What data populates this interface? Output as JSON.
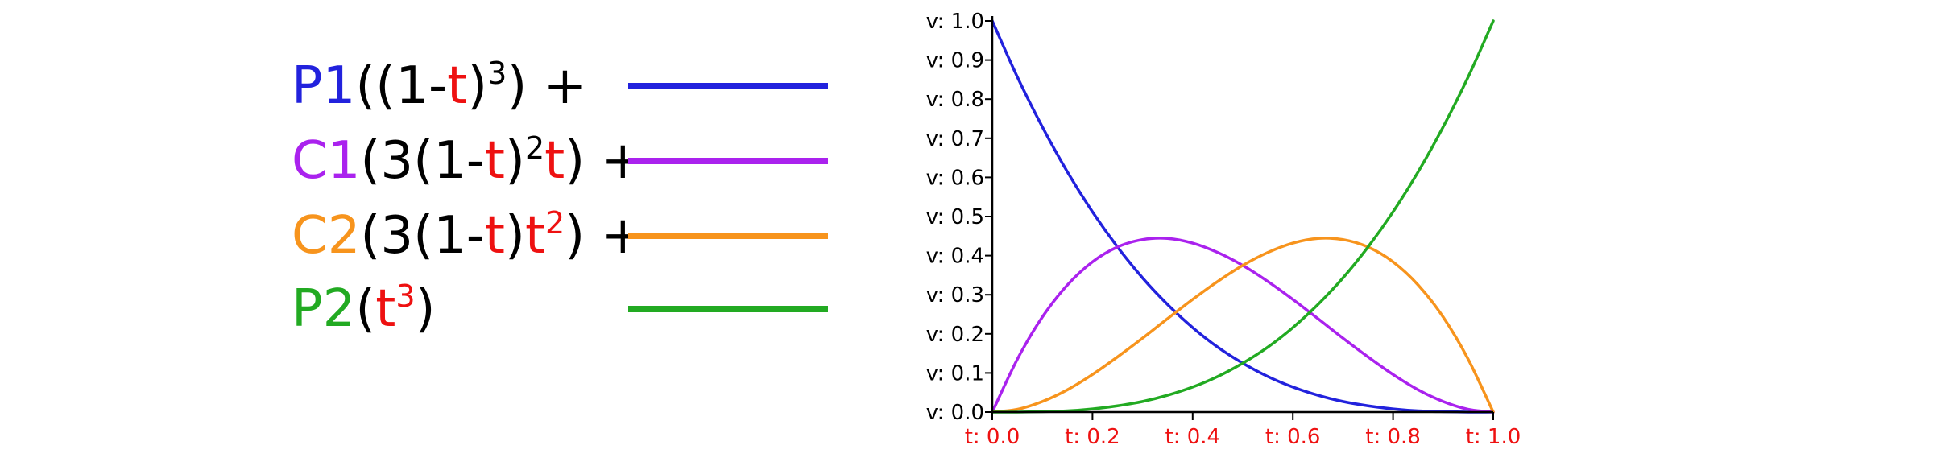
{
  "colors": {
    "p1": "#2222dd",
    "c1": "#aa22ee",
    "c2": "#f7941d",
    "p2": "#22aa22",
    "t": "#ee1111",
    "text": "#000000",
    "axis": "#000000"
  },
  "legend": [
    {
      "key": "p1",
      "color_key": "p1",
      "name": "P1",
      "parts": [
        {
          "text": "((1-"
        },
        {
          "text": "t",
          "t": true
        },
        {
          "text": ")"
        },
        {
          "text": "3",
          "sup": true
        },
        {
          "text": ") +"
        }
      ]
    },
    {
      "key": "c1",
      "color_key": "c1",
      "name": "C1",
      "parts": [
        {
          "text": "(3(1-"
        },
        {
          "text": "t",
          "t": true
        },
        {
          "text": ")"
        },
        {
          "text": "2",
          "sup": true
        },
        {
          "text": "t",
          "t": true
        },
        {
          "text": ") +"
        }
      ]
    },
    {
      "key": "c2",
      "color_key": "c2",
      "name": "C2",
      "parts": [
        {
          "text": "(3(1-"
        },
        {
          "text": "t",
          "t": true
        },
        {
          "text": ")"
        },
        {
          "text": "t",
          "t": true
        },
        {
          "text": "2",
          "sup": true,
          "t": true
        },
        {
          "text": ") +"
        }
      ]
    },
    {
      "key": "p2",
      "color_key": "p2",
      "name": "P2",
      "parts": [
        {
          "text": "("
        },
        {
          "text": "t",
          "t": true
        },
        {
          "text": "3",
          "sup": true,
          "t": true
        },
        {
          "text": ")"
        }
      ]
    }
  ],
  "chart_data": {
    "type": "line",
    "title": "",
    "xlabel": "",
    "ylabel": "",
    "xlim": [
      0,
      1
    ],
    "ylim": [
      0,
      1
    ],
    "grid": false,
    "legend_position": "left",
    "x_ticks": [
      {
        "value": 0.0,
        "label": "t: 0.0"
      },
      {
        "value": 0.2,
        "label": "t: 0.2"
      },
      {
        "value": 0.4,
        "label": "t: 0.4"
      },
      {
        "value": 0.6,
        "label": "t: 0.6"
      },
      {
        "value": 0.8,
        "label": "t: 0.8"
      },
      {
        "value": 1.0,
        "label": "t: 1.0"
      }
    ],
    "y_ticks": [
      {
        "value": 0.0,
        "label": "v: 0.0"
      },
      {
        "value": 0.1,
        "label": "v: 0.1"
      },
      {
        "value": 0.2,
        "label": "v: 0.2"
      },
      {
        "value": 0.3,
        "label": "v: 0.3"
      },
      {
        "value": 0.4,
        "label": "v: 0.4"
      },
      {
        "value": 0.5,
        "label": "v: 0.5"
      },
      {
        "value": 0.6,
        "label": "v: 0.6"
      },
      {
        "value": 0.7,
        "label": "v: 0.7"
      },
      {
        "value": 0.8,
        "label": "v: 0.8"
      },
      {
        "value": 0.9,
        "label": "v: 0.9"
      },
      {
        "value": 1.0,
        "label": "v: 1.0"
      }
    ],
    "x": [
      0.0,
      0.05,
      0.1,
      0.15,
      0.2,
      0.25,
      0.3,
      0.35,
      0.4,
      0.45,
      0.5,
      0.55,
      0.6,
      0.65,
      0.7,
      0.75,
      0.8,
      0.85,
      0.9,
      0.95,
      1.0
    ],
    "series": [
      {
        "name": "P1",
        "color_key": "p1",
        "values": [
          1.0,
          0.857,
          0.729,
          0.614,
          0.512,
          0.422,
          0.343,
          0.275,
          0.216,
          0.166,
          0.125,
          0.091,
          0.064,
          0.043,
          0.027,
          0.016,
          0.008,
          0.003,
          0.001,
          0.0001,
          0.0
        ]
      },
      {
        "name": "C1",
        "color_key": "c1",
        "values": [
          0.0,
          0.135,
          0.243,
          0.325,
          0.384,
          0.422,
          0.441,
          0.444,
          0.432,
          0.408,
          0.375,
          0.334,
          0.288,
          0.239,
          0.189,
          0.141,
          0.096,
          0.057,
          0.027,
          0.007,
          0.0
        ]
      },
      {
        "name": "C2",
        "color_key": "c2",
        "values": [
          0.0,
          0.007,
          0.027,
          0.057,
          0.096,
          0.141,
          0.189,
          0.239,
          0.288,
          0.334,
          0.375,
          0.408,
          0.432,
          0.444,
          0.441,
          0.422,
          0.384,
          0.325,
          0.243,
          0.135,
          0.0
        ]
      },
      {
        "name": "P2",
        "color_key": "p2",
        "values": [
          0.0,
          0.0001,
          0.001,
          0.003,
          0.008,
          0.016,
          0.027,
          0.043,
          0.064,
          0.091,
          0.125,
          0.166,
          0.216,
          0.275,
          0.343,
          0.422,
          0.512,
          0.614,
          0.729,
          0.857,
          1.0
        ]
      }
    ]
  }
}
